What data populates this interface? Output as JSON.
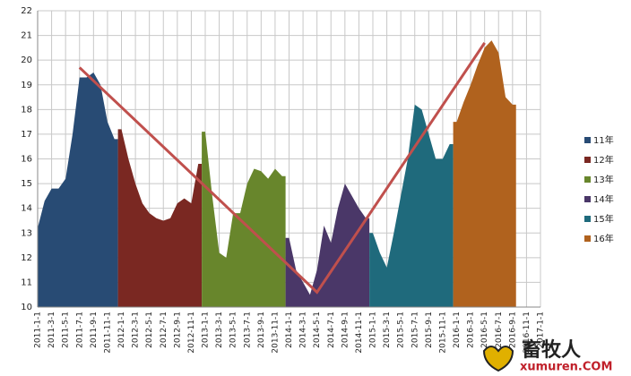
{
  "chart_data": {
    "type": "area",
    "categories": [
      "2011-1-1",
      null,
      "2011-3-1",
      null,
      "2011-5-1",
      null,
      "2011-7-1",
      null,
      "2011-9-1",
      null,
      "2011-11-1",
      null,
      "2012-1-1",
      null,
      "2012-3-1",
      null,
      "2012-5-1",
      null,
      "2012-7-1",
      null,
      "2012-9-1",
      null,
      "2012-11-1",
      null,
      "2013-1-1",
      null,
      "2013-3-1",
      null,
      "2013-5-1",
      null,
      "2013-7-1",
      null,
      "2013-9-1",
      null,
      "2013-11-1",
      null,
      "2014-1-1",
      null,
      "2014-3-1",
      null,
      "2014-5-1",
      null,
      "2014-7-1",
      null,
      "2014-9-1",
      null,
      "2014-11-1",
      null,
      "2015-1-1",
      null,
      "2015-3-1",
      null,
      "2015-5-1",
      null,
      "2015-7-1",
      null,
      "2015-9-1",
      null,
      "2015-11-1",
      null,
      "2016-1-1",
      null,
      "2016-3-1",
      null,
      "2016-5-1",
      null,
      "2016-7-1",
      null,
      "2016-9-1",
      null,
      "2016-11-1",
      null,
      "2017-1-1"
    ],
    "series": [
      {
        "name": "11年",
        "color": "#284b74",
        "values": [
          13.2,
          14.3,
          14.8,
          14.8,
          15.2,
          17.0,
          19.3,
          19.3,
          19.5,
          19.0,
          17.5,
          16.8,
          null,
          null,
          null,
          null,
          null,
          null,
          null,
          null,
          null,
          null,
          null,
          null,
          null,
          null,
          null,
          null,
          null,
          null,
          null,
          null,
          null,
          null,
          null,
          null,
          null,
          null,
          null,
          null,
          null,
          null,
          null,
          null,
          null,
          null,
          null,
          null,
          null,
          null,
          null,
          null,
          null,
          null,
          null,
          null,
          null,
          null,
          null,
          null,
          null,
          null,
          null,
          null,
          null,
          null,
          null,
          null,
          null,
          null,
          null,
          null,
          null
        ]
      },
      {
        "name": "12年",
        "color": "#7a2822",
        "values": [
          null,
          null,
          null,
          null,
          null,
          null,
          null,
          null,
          null,
          null,
          null,
          null,
          17.2,
          16.0,
          15.0,
          14.2,
          13.8,
          13.6,
          13.5,
          13.6,
          14.2,
          14.4,
          14.2,
          15.8,
          null,
          null,
          null,
          null,
          null,
          null,
          null,
          null,
          null,
          null,
          null,
          null,
          null,
          null,
          null,
          null,
          null,
          null,
          null,
          null,
          null,
          null,
          null,
          null,
          null,
          null,
          null,
          null,
          null,
          null,
          null,
          null,
          null,
          null,
          null,
          null,
          null,
          null,
          null,
          null,
          null,
          null,
          null,
          null,
          null,
          null,
          null,
          null,
          null
        ]
      },
      {
        "name": "13年",
        "color": "#68862c",
        "values": [
          null,
          null,
          null,
          null,
          null,
          null,
          null,
          null,
          null,
          null,
          null,
          null,
          null,
          null,
          null,
          null,
          null,
          null,
          null,
          null,
          null,
          null,
          null,
          null,
          17.1,
          14.5,
          12.2,
          12.0,
          13.8,
          13.8,
          15.0,
          15.6,
          15.5,
          15.2,
          15.6,
          15.3,
          null,
          null,
          null,
          null,
          null,
          null,
          null,
          null,
          null,
          null,
          null,
          null,
          null,
          null,
          null,
          null,
          null,
          null,
          null,
          null,
          null,
          null,
          null,
          null,
          null,
          null,
          null,
          null,
          null,
          null,
          null,
          null,
          null,
          null,
          null,
          null,
          null
        ]
      },
      {
        "name": "14年",
        "color": "#4a3768",
        "values": [
          null,
          null,
          null,
          null,
          null,
          null,
          null,
          null,
          null,
          null,
          null,
          null,
          null,
          null,
          null,
          null,
          null,
          null,
          null,
          null,
          null,
          null,
          null,
          null,
          null,
          null,
          null,
          null,
          null,
          null,
          null,
          null,
          null,
          null,
          null,
          null,
          12.8,
          11.5,
          11.0,
          10.5,
          11.5,
          13.3,
          12.6,
          14.0,
          15.0,
          14.5,
          14.0,
          13.6,
          null,
          null,
          null,
          null,
          null,
          null,
          null,
          null,
          null,
          null,
          null,
          null,
          null,
          null,
          null,
          null,
          null,
          null,
          null,
          null,
          null,
          null,
          null,
          null,
          null
        ]
      },
      {
        "name": "15年",
        "color": "#1f6a7c",
        "values": [
          null,
          null,
          null,
          null,
          null,
          null,
          null,
          null,
          null,
          null,
          null,
          null,
          null,
          null,
          null,
          null,
          null,
          null,
          null,
          null,
          null,
          null,
          null,
          null,
          null,
          null,
          null,
          null,
          null,
          null,
          null,
          null,
          null,
          null,
          null,
          null,
          null,
          null,
          null,
          null,
          null,
          null,
          null,
          null,
          null,
          null,
          null,
          null,
          13.0,
          12.2,
          11.6,
          13.0,
          14.5,
          16.0,
          18.2,
          18.0,
          17.0,
          16.0,
          16.0,
          16.6,
          null,
          null,
          null,
          null,
          null,
          null,
          null,
          null,
          null,
          null,
          null,
          null,
          null
        ]
      },
      {
        "name": "16年",
        "color": "#b0621e",
        "values": [
          null,
          null,
          null,
          null,
          null,
          null,
          null,
          null,
          null,
          null,
          null,
          null,
          null,
          null,
          null,
          null,
          null,
          null,
          null,
          null,
          null,
          null,
          null,
          null,
          null,
          null,
          null,
          null,
          null,
          null,
          null,
          null,
          null,
          null,
          null,
          null,
          null,
          null,
          null,
          null,
          null,
          null,
          null,
          null,
          null,
          null,
          null,
          null,
          null,
          null,
          null,
          null,
          null,
          null,
          null,
          null,
          null,
          null,
          null,
          null,
          17.5,
          18.3,
          19.0,
          19.8,
          20.5,
          20.8,
          20.3,
          18.5,
          18.2,
          null,
          null,
          null,
          null
        ]
      }
    ],
    "trend_line": {
      "color": "#c0504d",
      "points": [
        {
          "x": "2011-7-1",
          "y": 19.7
        },
        {
          "x": "2014-5-1",
          "y": 10.6
        },
        {
          "x": "2016-5-1",
          "y": 20.7
        }
      ]
    },
    "ylim": [
      10,
      22
    ],
    "yticks": [
      10,
      11,
      12,
      13,
      14,
      15,
      16,
      17,
      18,
      19,
      20,
      21,
      22
    ],
    "grid": true,
    "legend": "right",
    "watermark": {
      "title": "畜牧人",
      "site": "xumuren.COM"
    }
  }
}
